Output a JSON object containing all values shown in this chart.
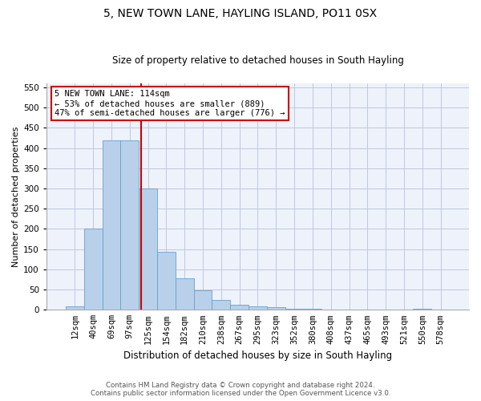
{
  "title": "5, NEW TOWN LANE, HAYLING ISLAND, PO11 0SX",
  "subtitle": "Size of property relative to detached houses in South Hayling",
  "xlabel": "Distribution of detached houses by size in South Hayling",
  "ylabel": "Number of detached properties",
  "categories": [
    "12sqm",
    "40sqm",
    "69sqm",
    "97sqm",
    "125sqm",
    "154sqm",
    "182sqm",
    "210sqm",
    "238sqm",
    "267sqm",
    "295sqm",
    "323sqm",
    "352sqm",
    "380sqm",
    "408sqm",
    "437sqm",
    "465sqm",
    "493sqm",
    "521sqm",
    "550sqm",
    "578sqm"
  ],
  "values": [
    8,
    200,
    420,
    420,
    300,
    143,
    77,
    48,
    24,
    12,
    8,
    6,
    3,
    2,
    1,
    0,
    0,
    0,
    0,
    2,
    0
  ],
  "bar_color": "#b8d0ea",
  "bar_edge_color": "#6aa0c8",
  "vline_color": "#cc0000",
  "annotation_text": "5 NEW TOWN LANE: 114sqm\n← 53% of detached houses are smaller (889)\n47% of semi-detached houses are larger (776) →",
  "annotation_box_color": "#ffffff",
  "annotation_box_edge_color": "#cc0000",
  "ylim": [
    0,
    560
  ],
  "yticks": [
    0,
    50,
    100,
    150,
    200,
    250,
    300,
    350,
    400,
    450,
    500,
    550
  ],
  "footer_line1": "Contains HM Land Registry data © Crown copyright and database right 2024.",
  "footer_line2": "Contains public sector information licensed under the Open Government Licence v3.0.",
  "background_color": "#eef2fa",
  "grid_color": "#c0c8de",
  "title_fontsize": 10,
  "subtitle_fontsize": 8.5,
  "xlabel_fontsize": 8.5,
  "ylabel_fontsize": 8,
  "tick_fontsize": 7.5
}
